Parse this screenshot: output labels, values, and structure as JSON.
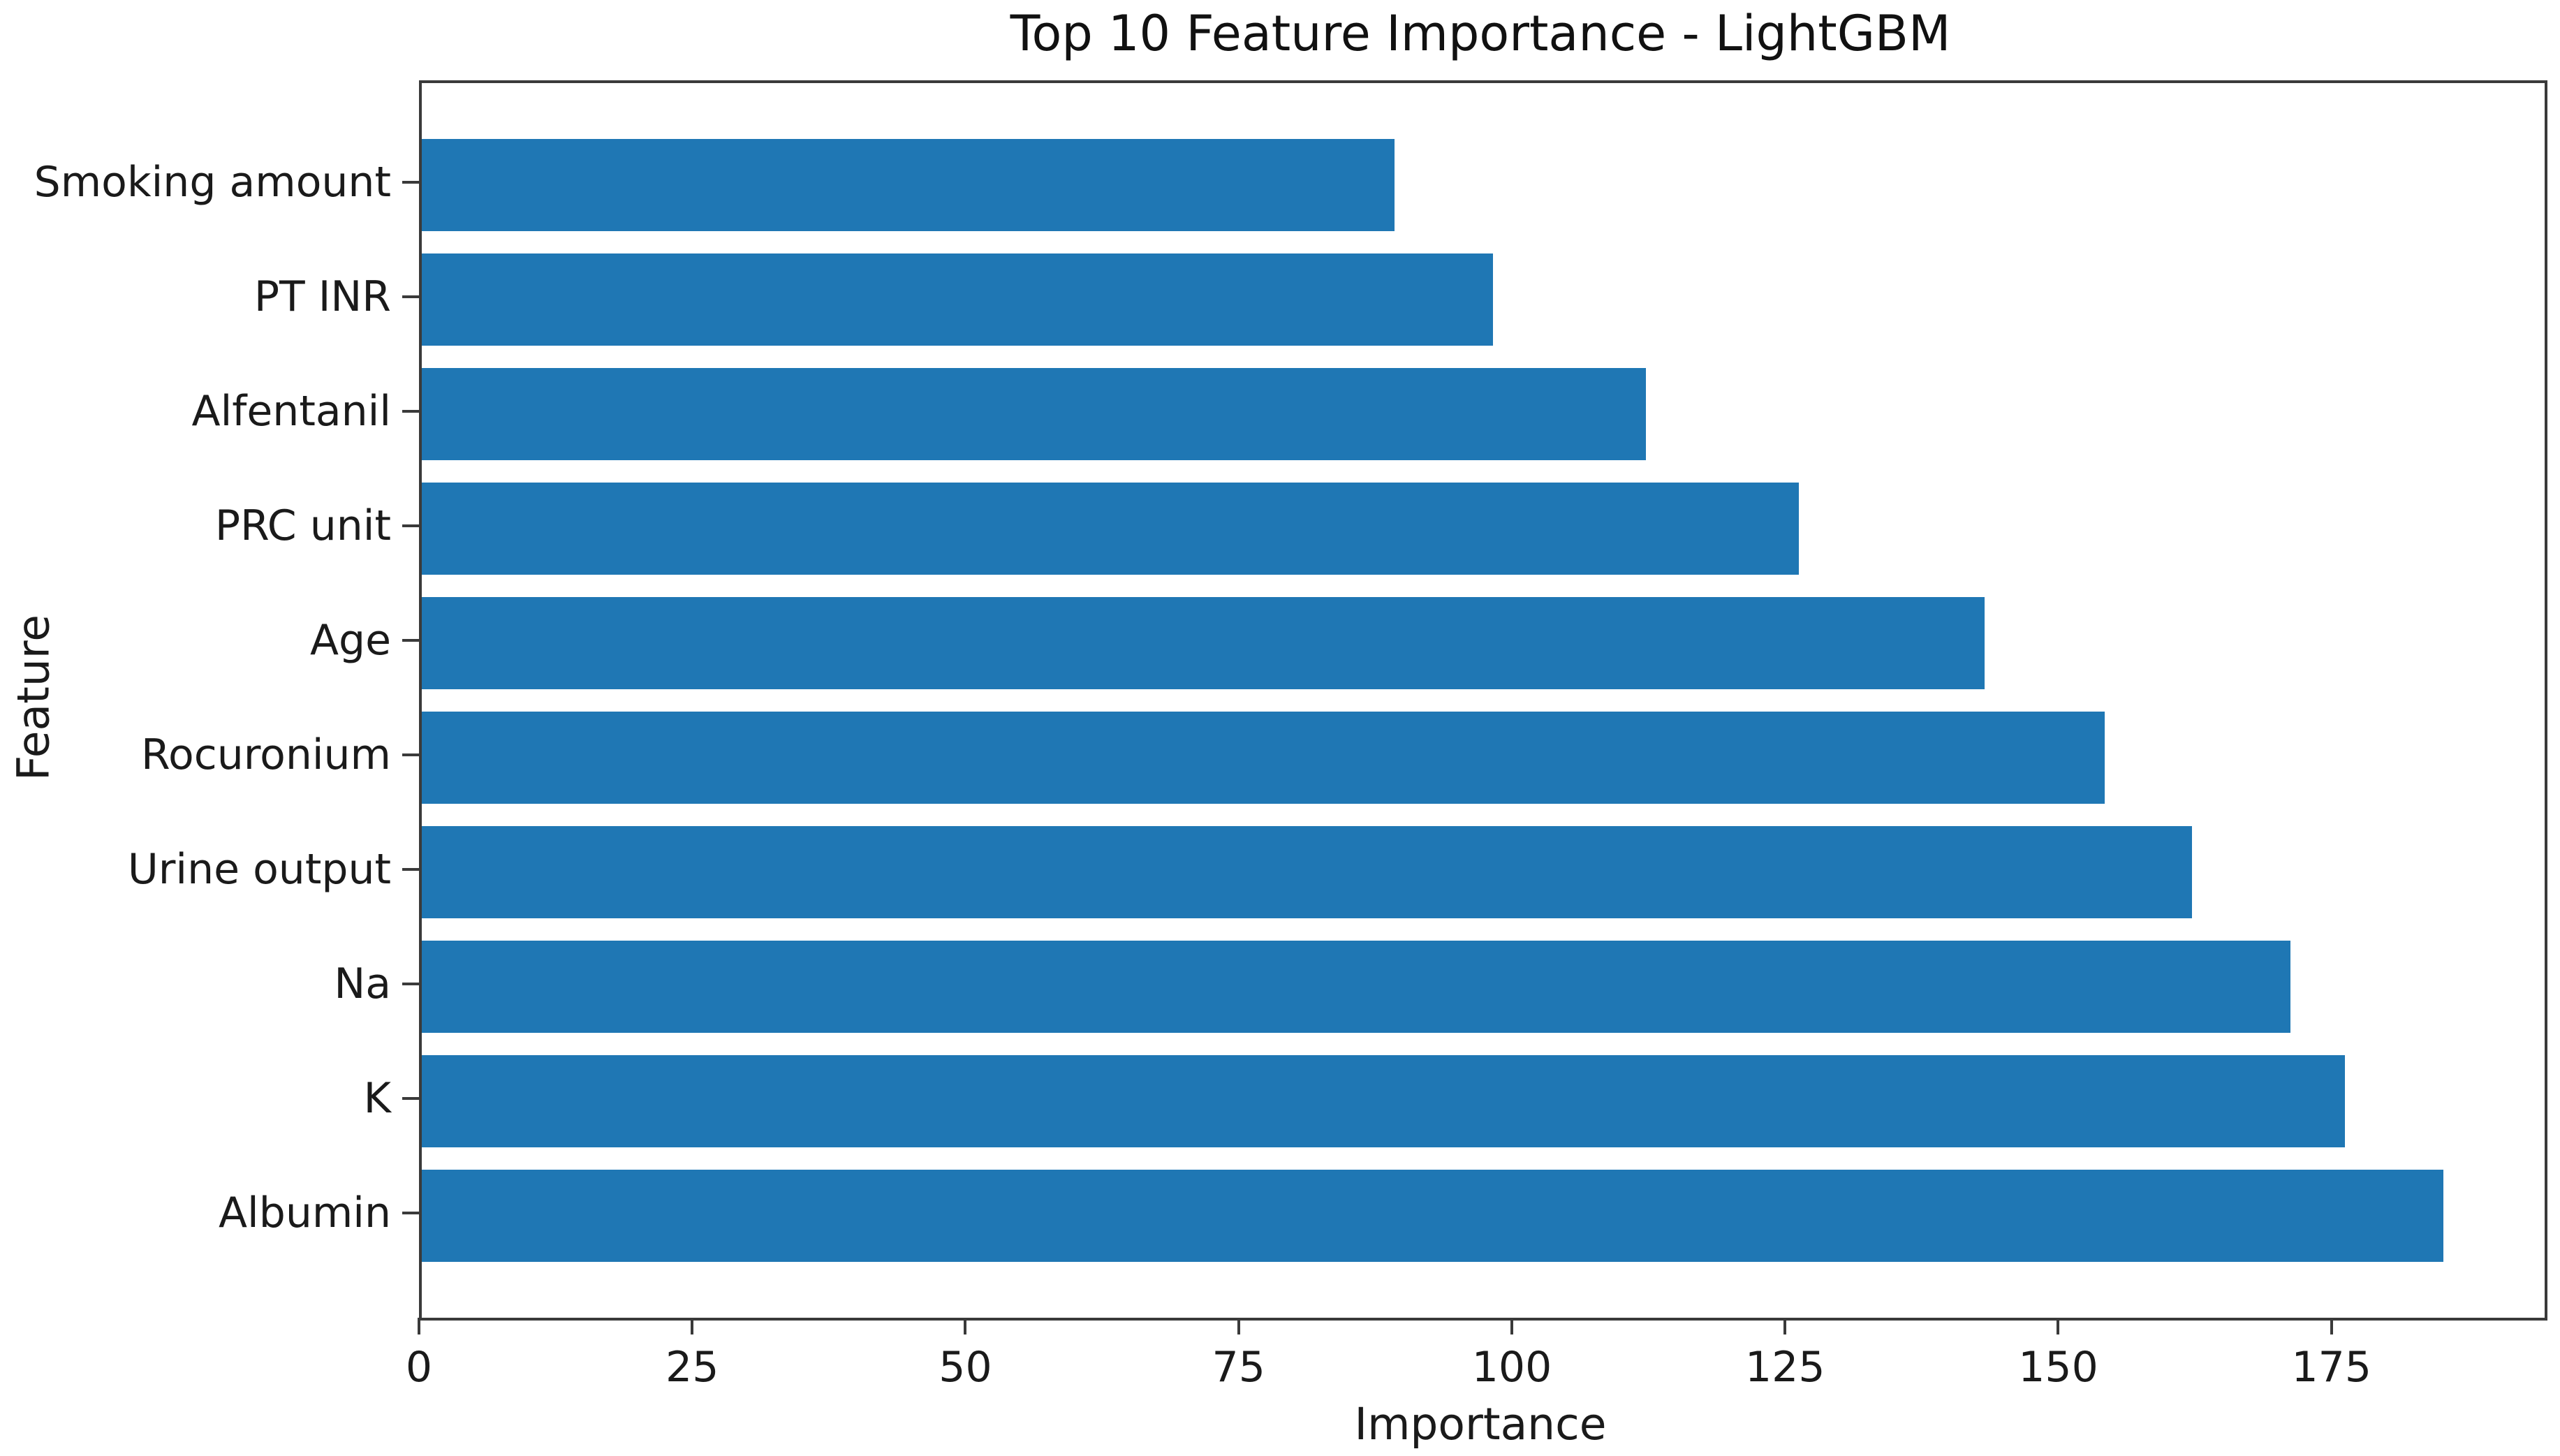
{
  "chart_data": {
    "type": "bar",
    "orientation": "horizontal",
    "title": "Top 10 Feature Importance - LightGBM",
    "xlabel": "Importance",
    "ylabel": "Feature",
    "categories": [
      "Smoking amount",
      "PT INR",
      "Alfentanil",
      "PRC unit",
      "Age",
      "Rocuronium",
      "Urine output",
      "Na",
      "K",
      "Albumin"
    ],
    "values": [
      89,
      98,
      112,
      126,
      143,
      154,
      162,
      171,
      176,
      185
    ],
    "xticks": [
      0,
      25,
      50,
      75,
      100,
      125,
      150,
      175
    ],
    "xlim": [
      0,
      194.25
    ],
    "bar_color": "#1f77b4",
    "axis_color": "#3a3a3a",
    "text_color": "#1a1a1a",
    "background_color": "#ffffff",
    "grid": false,
    "bar_height_fraction": 0.8,
    "y_margin_fraction": 0.05
  }
}
